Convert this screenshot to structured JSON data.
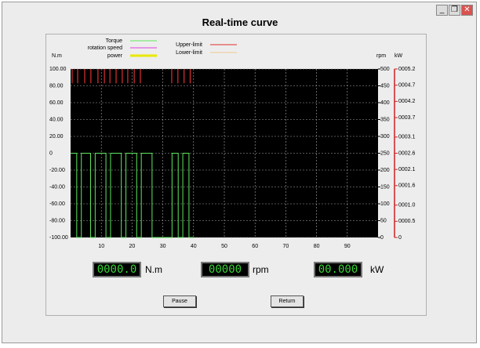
{
  "window": {
    "title": "Real-time curve",
    "readouts": [
      {
        "value": "0000.0",
        "unit": "N.m"
      },
      {
        "value": "00000",
        "unit": "rpm"
      },
      {
        "value": "00.000",
        "unit": "kW"
      }
    ],
    "buttons": [
      "Pause",
      "Return"
    ]
  },
  "chart_data": {
    "type": "line",
    "y_label": "N.m",
    "y2_label": "rpm",
    "y3_label": "kW",
    "xlim": [
      0,
      100
    ],
    "xticks": [
      10,
      20,
      30,
      40,
      50,
      60,
      70,
      80,
      90
    ],
    "ylim": [
      -100,
      100
    ],
    "yticks": [
      {
        "value": 100,
        "label": "100.00"
      },
      {
        "value": 80,
        "label": "80.00"
      },
      {
        "value": 60,
        "label": "60.00"
      },
      {
        "value": 40,
        "label": "40.00"
      },
      {
        "value": 20,
        "label": "20.00"
      },
      0,
      {
        "value": -20,
        "label": "-20.00"
      },
      {
        "value": -40,
        "label": "-40.00"
      },
      {
        "value": -60,
        "label": "-60.00"
      },
      {
        "value": -80,
        "label": "-80.00"
      },
      {
        "value": -100,
        "label": "-100.00"
      }
    ],
    "y2lim": [
      0,
      500
    ],
    "y2ticks": [
      0,
      50,
      100,
      150,
      200,
      250,
      300,
      350,
      400,
      450,
      500
    ],
    "y3lim": [
      0,
      5.2
    ],
    "y3ticks": [
      0,
      {
        "value": 0.5,
        "label": "0000.5"
      },
      {
        "value": 1.0,
        "label": "0001.0"
      },
      {
        "value": 1.6,
        "label": "0001.6"
      },
      {
        "value": 2.1,
        "label": "0002.1"
      },
      {
        "value": 2.6,
        "label": "0002.6"
      },
      {
        "value": 3.1,
        "label": "0003.1"
      },
      {
        "value": 3.7,
        "label": "0003.7"
      },
      {
        "value": 4.2,
        "label": "0004.2"
      },
      {
        "value": 4.7,
        "label": "0004.7"
      },
      {
        "value": 5.2,
        "label": "0005.2"
      }
    ],
    "grid": true,
    "series": [
      {
        "name": "Torque",
        "color": "#5ee85e",
        "x": [
          0,
          2,
          2,
          3.5,
          3.5,
          6.5,
          6.5,
          8,
          8,
          11.5,
          11.5,
          13,
          13,
          16.5,
          16.5,
          18,
          18,
          21.5,
          21.5,
          23,
          23,
          26.5,
          26.5,
          33,
          33,
          35,
          35,
          36.5,
          36.5,
          38.5,
          38.5,
          40
        ],
        "values": [
          0,
          0,
          -100,
          -100,
          0,
          0,
          -100,
          -100,
          0,
          0,
          -100,
          -100,
          0,
          0,
          -100,
          -100,
          0,
          0,
          -100,
          -100,
          0,
          0,
          -100,
          -100,
          0,
          0,
          -100,
          -100,
          0,
          0,
          -100,
          -100
        ]
      },
      {
        "name": "rotation speed",
        "color": "#e040e0"
      },
      {
        "name": "power",
        "color": "#e8e800"
      },
      {
        "name": "Upper-limit",
        "color": "#e03030",
        "x": [
          0.5,
          2.3,
          4.6,
          6.6,
          8.9,
          11,
          12.8,
          14.8,
          16.8,
          18.6,
          20.7,
          22.7,
          32.9,
          34.9,
          36.9,
          38.9
        ],
        "values": [
          83,
          83,
          83,
          83,
          83,
          83,
          83,
          83,
          83,
          83,
          83,
          83,
          83,
          83,
          83,
          83
        ]
      },
      {
        "name": "Lower-limit",
        "color": "#f0c890"
      }
    ]
  }
}
